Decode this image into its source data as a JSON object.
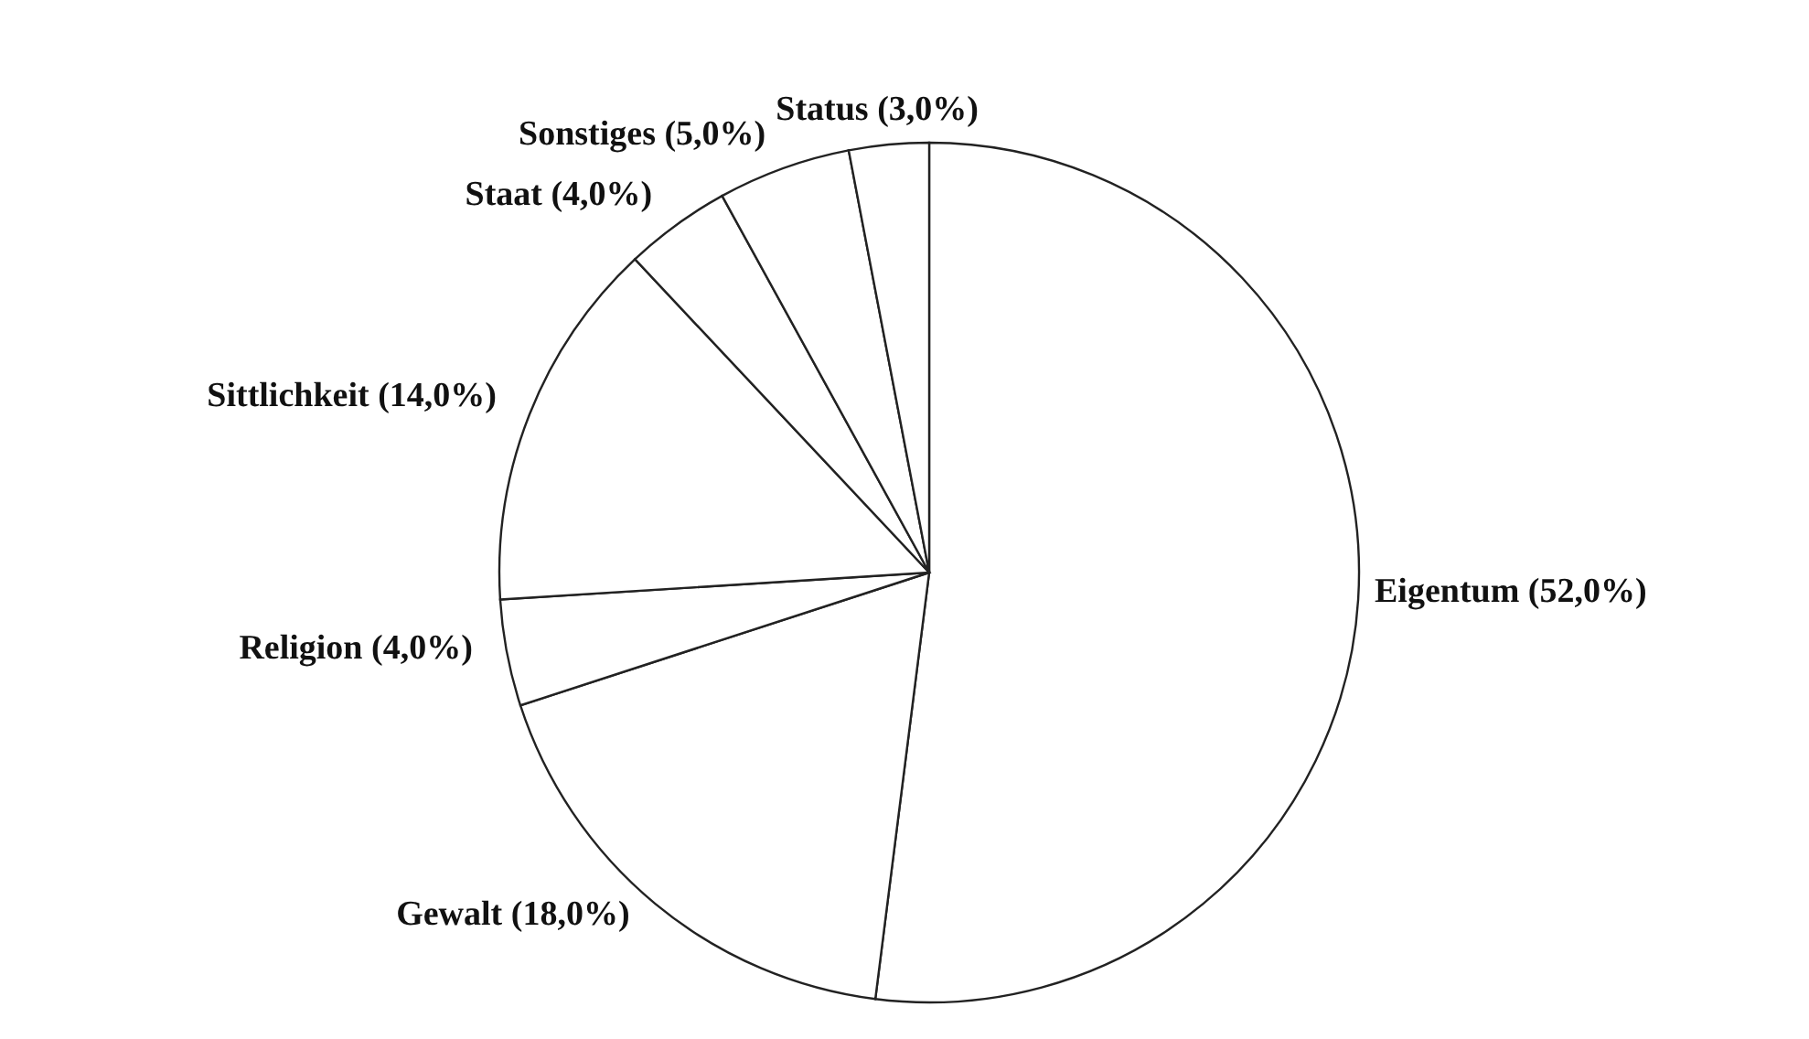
{
  "chart_data": {
    "type": "pie",
    "categories": [
      "Eigentum",
      "Gewalt",
      "Religion",
      "Sittlichkeit",
      "Staat",
      "Sonstiges",
      "Status"
    ],
    "values": [
      52,
      18,
      4,
      14,
      4,
      5,
      3
    ],
    "value_labels": [
      "(52,0%)",
      "(18,0%)",
      "(4,0%)",
      "(14,0%)",
      "(4,0%)",
      "(5,0%)",
      "(3,0%)"
    ],
    "colors": [
      "#ffffff",
      "#ffffff",
      "#ffffff",
      "#ffffff",
      "#ffffff",
      "#ffffff",
      "#ffffff"
    ],
    "legend": false
  }
}
